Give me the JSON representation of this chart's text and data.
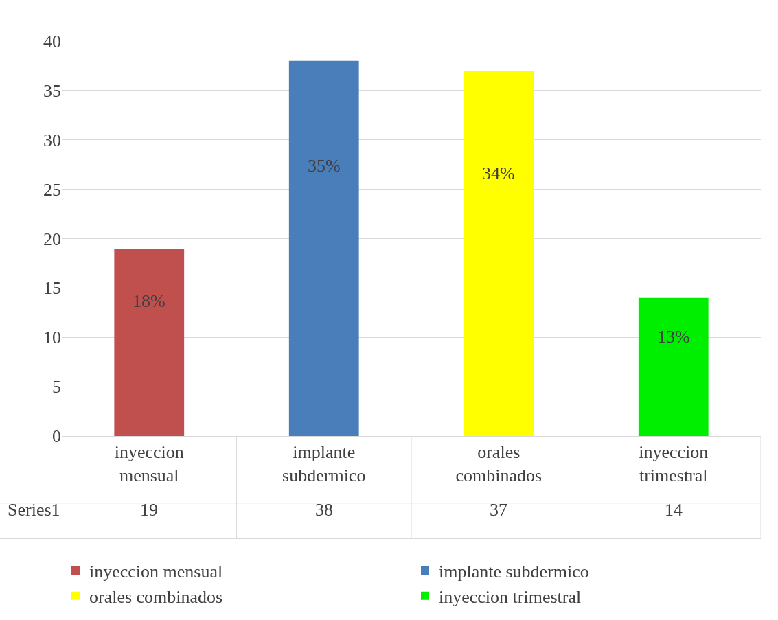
{
  "chart_data": {
    "type": "bar",
    "categories": [
      "inyeccion mensual",
      "implante subdermico",
      "orales combinados",
      "inyeccion trimestral"
    ],
    "series": [
      {
        "name": "Series1",
        "colors": [
          "#c0504d",
          "#4a7ebb",
          "#ffff00",
          "#00ee00"
        ],
        "values": [
          19,
          38,
          37,
          14
        ]
      }
    ],
    "annotations": [
      "18%",
      "35%",
      "34%",
      "13%"
    ],
    "ylim": [
      0,
      40
    ],
    "yticks": [
      0,
      5,
      10,
      15,
      20,
      25,
      30,
      35,
      40
    ],
    "grid": "y",
    "legend": "bottom",
    "data_labels": true
  }
}
